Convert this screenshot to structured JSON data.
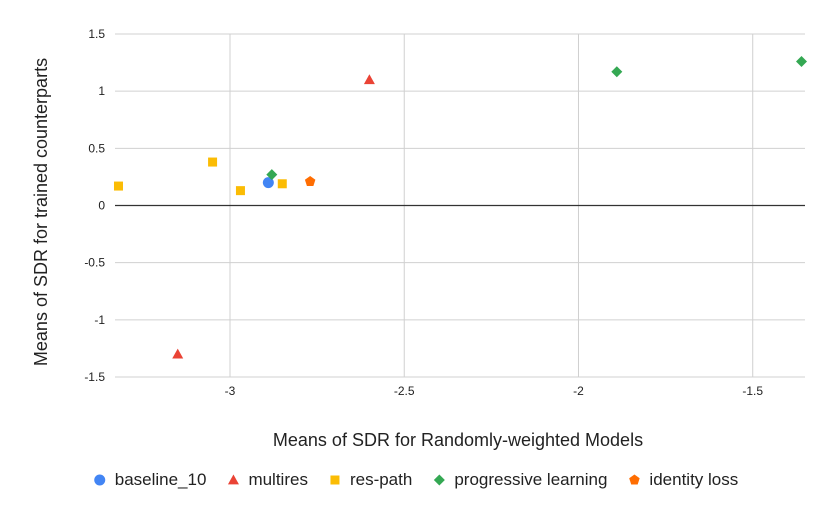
{
  "chart_data": {
    "type": "scatter",
    "title": "",
    "xlabel": "Means of SDR for Randomly-weighted Models",
    "ylabel": "Means of SDR for trained counterparts",
    "xlim": [
      -3.33,
      -1.35
    ],
    "ylim": [
      -1.5,
      1.5
    ],
    "x_ticks": [
      -3,
      -2.5,
      -2,
      -1.5
    ],
    "x_tick_labels": [
      "-3",
      "-2.5",
      "-2",
      "-1.5"
    ],
    "y_ticks": [
      1.5,
      1,
      0.5,
      0,
      -0.5,
      -1,
      -1.5
    ],
    "y_tick_labels": [
      "1.5",
      "1",
      "0.5",
      "0",
      "-0.5",
      "-1",
      "-1.5"
    ],
    "grid": true,
    "legend_position": "bottom",
    "series": [
      {
        "name": "baseline_10",
        "marker": "circle",
        "color": "#4285f4",
        "points": [
          [
            -2.89,
            0.2
          ]
        ]
      },
      {
        "name": "multires",
        "marker": "triangle",
        "color": "#ea4335",
        "points": [
          [
            -2.6,
            1.1
          ],
          [
            -3.15,
            -1.3
          ]
        ]
      },
      {
        "name": "res-path",
        "marker": "square",
        "color": "#fbbc04",
        "points": [
          [
            -3.32,
            0.17
          ],
          [
            -3.05,
            0.38
          ],
          [
            -2.97,
            0.13
          ],
          [
            -2.85,
            0.19
          ]
        ]
      },
      {
        "name": "progressive learning",
        "marker": "diamond",
        "color": "#34a853",
        "points": [
          [
            -2.88,
            0.27
          ],
          [
            -1.89,
            1.17
          ],
          [
            -1.36,
            1.26
          ]
        ]
      },
      {
        "name": "identity loss",
        "marker": "pentagon",
        "color": "#ff6d01",
        "points": [
          [
            -2.77,
            0.21
          ]
        ]
      }
    ]
  }
}
